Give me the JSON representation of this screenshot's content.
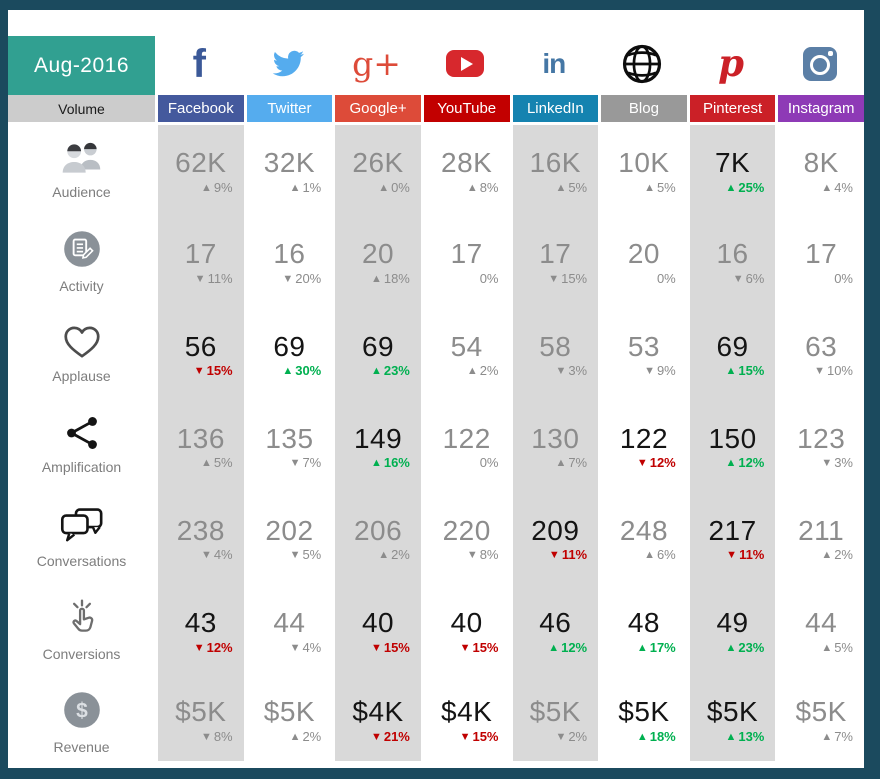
{
  "window": {
    "period": "Aug-2016",
    "volume_label": "Volume"
  },
  "colors": {
    "frame_border": "#1b4a5e",
    "period_bg": "#31a091",
    "volume_bar_bg": "#cccccc",
    "shaded_column": "#d9d9d9",
    "value_gray": "#8c8c8c",
    "value_black": "#141414",
    "pct_gray": "#8c8c8c",
    "pct_green": "#00b050",
    "pct_red": "#c00000"
  },
  "chart_data": {
    "type": "table",
    "title": "Aug-2016",
    "corner_label": "Volume",
    "columns": [
      {
        "label": "Facebook",
        "color": "#44599d",
        "icon": "facebook-icon",
        "shaded": true
      },
      {
        "label": "Twitter",
        "color": "#55acee",
        "icon": "twitter-icon",
        "shaded": false
      },
      {
        "label": "Google+",
        "color": "#dd4b39",
        "icon": "googleplus-icon",
        "shaded": true
      },
      {
        "label": "YouTube",
        "color": "#c20000",
        "icon": "youtube-icon",
        "shaded": false
      },
      {
        "label": "LinkedIn",
        "color": "#1583b0",
        "icon": "linkedin-icon",
        "shaded": true
      },
      {
        "label": "Blog",
        "color": "#999999",
        "icon": "blog-icon",
        "shaded": false
      },
      {
        "label": "Pinterest",
        "color": "#cb2027",
        "icon": "pinterest-icon",
        "shaded": true
      },
      {
        "label": "Instagram",
        "color": "#8e3ab6",
        "icon": "instagram-icon",
        "shaded": false
      }
    ],
    "rows": [
      {
        "label": "Audience",
        "icon": "audience-icon",
        "cells": [
          {
            "value": "62K",
            "direction": "up",
            "change": "9%",
            "tone": "gray",
            "emphasized": false
          },
          {
            "value": "32K",
            "direction": "up",
            "change": "1%",
            "tone": "gray",
            "emphasized": false
          },
          {
            "value": "26K",
            "direction": "up",
            "change": "0%",
            "tone": "gray",
            "emphasized": false
          },
          {
            "value": "28K",
            "direction": "up",
            "change": "8%",
            "tone": "gray",
            "emphasized": false
          },
          {
            "value": "16K",
            "direction": "up",
            "change": "5%",
            "tone": "gray",
            "emphasized": false
          },
          {
            "value": "10K",
            "direction": "up",
            "change": "5%",
            "tone": "gray",
            "emphasized": false
          },
          {
            "value": "7K",
            "direction": "up",
            "change": "25%",
            "tone": "green",
            "emphasized": true
          },
          {
            "value": "8K",
            "direction": "up",
            "change": "4%",
            "tone": "gray",
            "emphasized": false
          }
        ]
      },
      {
        "label": "Activity",
        "icon": "activity-icon",
        "cells": [
          {
            "value": "17",
            "direction": "down",
            "change": "11%",
            "tone": "gray",
            "emphasized": false
          },
          {
            "value": "16",
            "direction": "down",
            "change": "20%",
            "tone": "gray",
            "emphasized": false
          },
          {
            "value": "20",
            "direction": "up",
            "change": "18%",
            "tone": "gray",
            "emphasized": false
          },
          {
            "value": "17",
            "direction": "flat",
            "change": "0%",
            "tone": "gray",
            "emphasized": false
          },
          {
            "value": "17",
            "direction": "down",
            "change": "15%",
            "tone": "gray",
            "emphasized": false
          },
          {
            "value": "20",
            "direction": "flat",
            "change": "0%",
            "tone": "gray",
            "emphasized": false
          },
          {
            "value": "16",
            "direction": "down",
            "change": "6%",
            "tone": "gray",
            "emphasized": false
          },
          {
            "value": "17",
            "direction": "flat",
            "change": "0%",
            "tone": "gray",
            "emphasized": false
          }
        ]
      },
      {
        "label": "Applause",
        "icon": "applause-icon",
        "cells": [
          {
            "value": "56",
            "direction": "down",
            "change": "15%",
            "tone": "red",
            "emphasized": true
          },
          {
            "value": "69",
            "direction": "up",
            "change": "30%",
            "tone": "green",
            "emphasized": true
          },
          {
            "value": "69",
            "direction": "up",
            "change": "23%",
            "tone": "green",
            "emphasized": true
          },
          {
            "value": "54",
            "direction": "up",
            "change": "2%",
            "tone": "gray",
            "emphasized": false
          },
          {
            "value": "58",
            "direction": "down",
            "change": "3%",
            "tone": "gray",
            "emphasized": false
          },
          {
            "value": "53",
            "direction": "down",
            "change": "9%",
            "tone": "gray",
            "emphasized": false
          },
          {
            "value": "69",
            "direction": "up",
            "change": "15%",
            "tone": "green",
            "emphasized": true
          },
          {
            "value": "63",
            "direction": "down",
            "change": "10%",
            "tone": "gray",
            "emphasized": false
          }
        ]
      },
      {
        "label": "Amplification",
        "icon": "amplification-icon",
        "cells": [
          {
            "value": "136",
            "direction": "up",
            "change": "5%",
            "tone": "gray",
            "emphasized": false
          },
          {
            "value": "135",
            "direction": "down",
            "change": "7%",
            "tone": "gray",
            "emphasized": false
          },
          {
            "value": "149",
            "direction": "up",
            "change": "16%",
            "tone": "green",
            "emphasized": true
          },
          {
            "value": "122",
            "direction": "flat",
            "change": "0%",
            "tone": "gray",
            "emphasized": false
          },
          {
            "value": "130",
            "direction": "up",
            "change": "7%",
            "tone": "gray",
            "emphasized": false
          },
          {
            "value": "122",
            "direction": "down",
            "change": "12%",
            "tone": "red",
            "emphasized": true
          },
          {
            "value": "150",
            "direction": "up",
            "change": "12%",
            "tone": "green",
            "emphasized": true
          },
          {
            "value": "123",
            "direction": "down",
            "change": "3%",
            "tone": "gray",
            "emphasized": false
          }
        ]
      },
      {
        "label": "Conversations",
        "icon": "conversations-icon",
        "cells": [
          {
            "value": "238",
            "direction": "down",
            "change": "4%",
            "tone": "gray",
            "emphasized": false
          },
          {
            "value": "202",
            "direction": "down",
            "change": "5%",
            "tone": "gray",
            "emphasized": false
          },
          {
            "value": "206",
            "direction": "up",
            "change": "2%",
            "tone": "gray",
            "emphasized": false
          },
          {
            "value": "220",
            "direction": "down",
            "change": "8%",
            "tone": "gray",
            "emphasized": false
          },
          {
            "value": "209",
            "direction": "down",
            "change": "11%",
            "tone": "red",
            "emphasized": true
          },
          {
            "value": "248",
            "direction": "up",
            "change": "6%",
            "tone": "gray",
            "emphasized": false
          },
          {
            "value": "217",
            "direction": "down",
            "change": "11%",
            "tone": "red",
            "emphasized": true
          },
          {
            "value": "211",
            "direction": "up",
            "change": "2%",
            "tone": "gray",
            "emphasized": false
          }
        ]
      },
      {
        "label": "Conversions",
        "icon": "conversions-icon",
        "cells": [
          {
            "value": "43",
            "direction": "down",
            "change": "12%",
            "tone": "red",
            "emphasized": true
          },
          {
            "value": "44",
            "direction": "down",
            "change": "4%",
            "tone": "gray",
            "emphasized": false
          },
          {
            "value": "40",
            "direction": "down",
            "change": "15%",
            "tone": "red",
            "emphasized": true
          },
          {
            "value": "40",
            "direction": "down",
            "change": "15%",
            "tone": "red",
            "emphasized": true
          },
          {
            "value": "46",
            "direction": "up",
            "change": "12%",
            "tone": "green",
            "emphasized": true
          },
          {
            "value": "48",
            "direction": "up",
            "change": "17%",
            "tone": "green",
            "emphasized": true
          },
          {
            "value": "49",
            "direction": "up",
            "change": "23%",
            "tone": "green",
            "emphasized": true
          },
          {
            "value": "44",
            "direction": "up",
            "change": "5%",
            "tone": "gray",
            "emphasized": false
          }
        ]
      },
      {
        "label": "Revenue",
        "icon": "revenue-icon",
        "cells": [
          {
            "value": "$5K",
            "direction": "down",
            "change": "8%",
            "tone": "gray",
            "emphasized": false
          },
          {
            "value": "$5K",
            "direction": "up",
            "change": "2%",
            "tone": "gray",
            "emphasized": false
          },
          {
            "value": "$4K",
            "direction": "down",
            "change": "21%",
            "tone": "red",
            "emphasized": true
          },
          {
            "value": "$4K",
            "direction": "down",
            "change": "15%",
            "tone": "red",
            "emphasized": true
          },
          {
            "value": "$5K",
            "direction": "down",
            "change": "2%",
            "tone": "gray",
            "emphasized": false
          },
          {
            "value": "$5K",
            "direction": "up",
            "change": "18%",
            "tone": "green",
            "emphasized": true
          },
          {
            "value": "$5K",
            "direction": "up",
            "change": "13%",
            "tone": "green",
            "emphasized": true
          },
          {
            "value": "$5K",
            "direction": "up",
            "change": "7%",
            "tone": "gray",
            "emphasized": false
          }
        ]
      }
    ]
  }
}
